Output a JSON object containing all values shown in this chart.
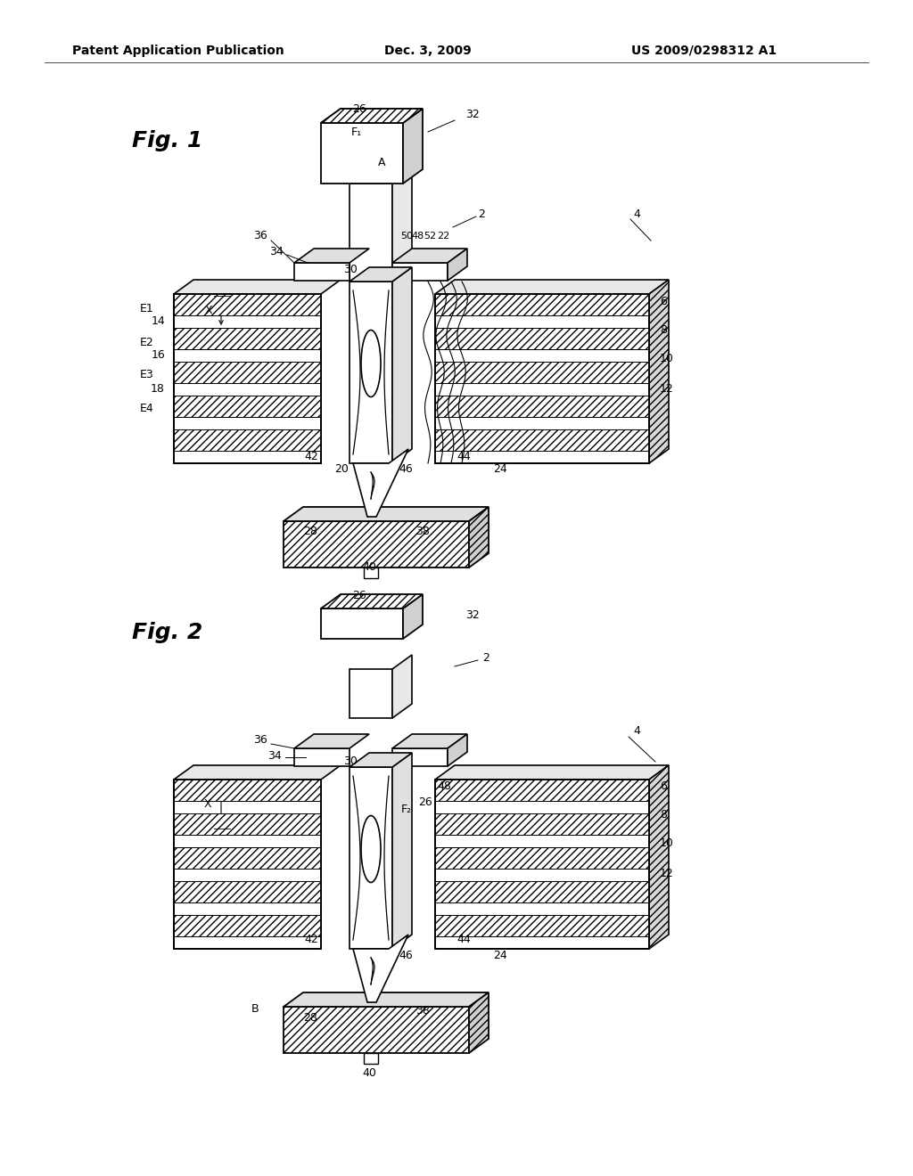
{
  "background_color": "#ffffff",
  "header_left": "Patent Application Publication",
  "header_center": "Dec. 3, 2009",
  "header_right": "US 2009/0298312 A1",
  "fig1_label": "Fig. 1",
  "fig2_label": "Fig. 2"
}
